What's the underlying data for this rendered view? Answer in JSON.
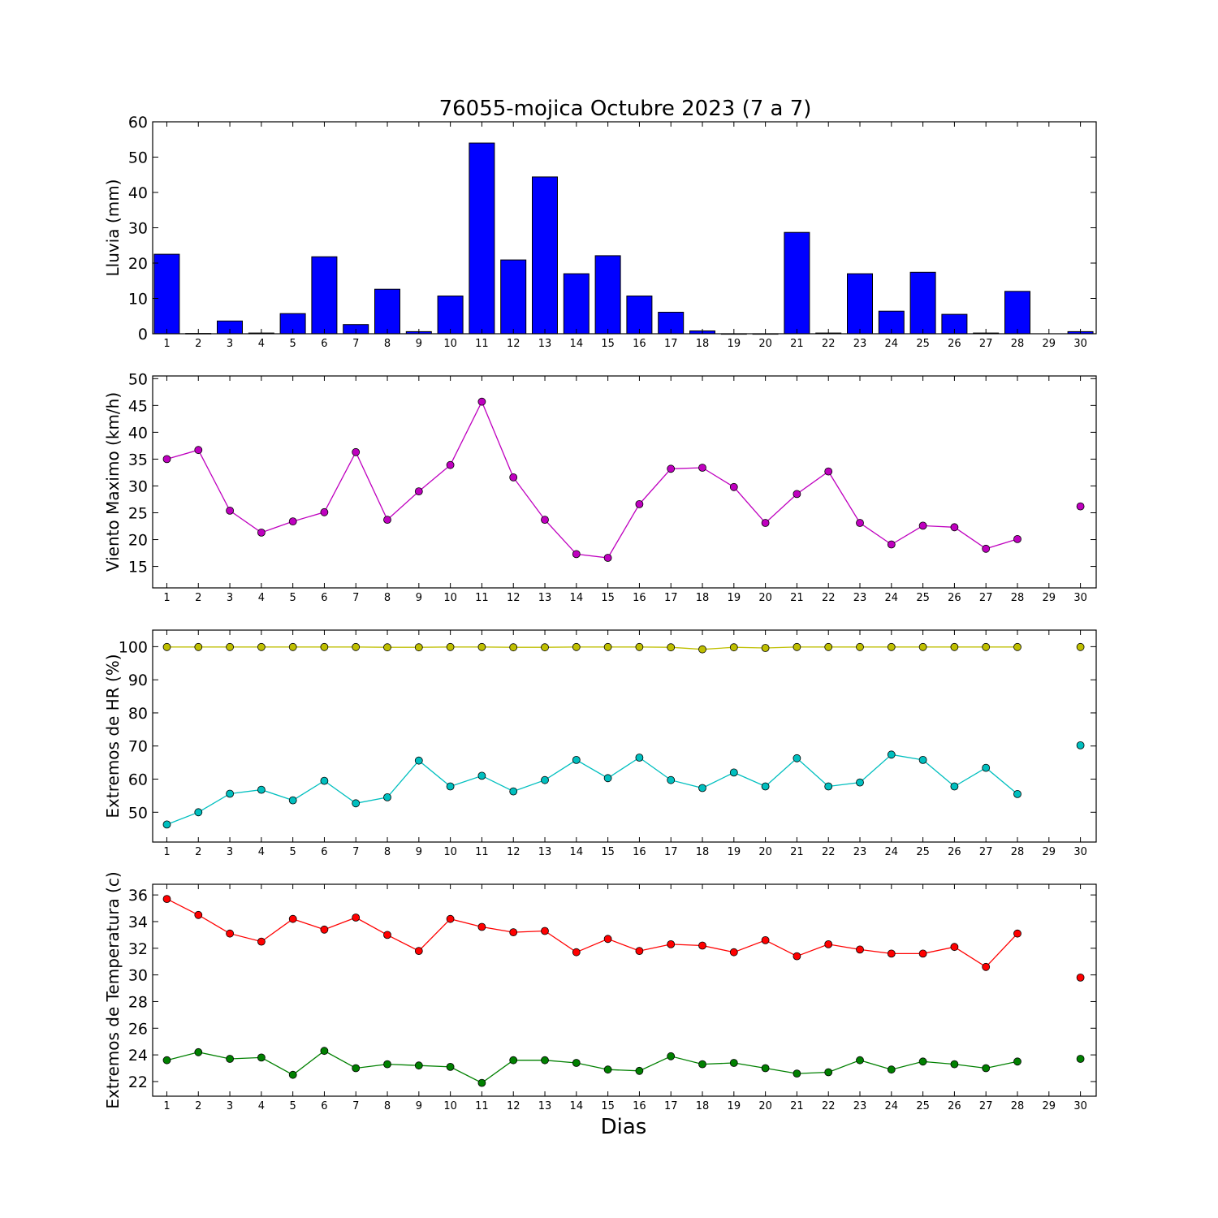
{
  "figure": {
    "title": "76055-mojica Octubre 2023  (7 a 7)",
    "xlabel": "Dias"
  },
  "chart_data": [
    {
      "type": "bar",
      "ylabel": "Lluvia (mm)",
      "ylim": [
        0,
        60
      ],
      "yticks": [
        0,
        10,
        20,
        30,
        40,
        50,
        60
      ],
      "xticks": [
        1,
        2,
        3,
        4,
        5,
        6,
        7,
        8,
        9,
        10,
        11,
        12,
        13,
        14,
        15,
        16,
        17,
        18,
        19,
        20,
        21,
        22,
        23,
        24,
        25,
        26,
        27,
        28,
        29,
        30
      ],
      "color": "#0000ff",
      "series": [
        {
          "x": [
            1,
            2,
            3,
            4,
            5,
            6,
            7,
            8,
            9,
            10,
            11,
            12,
            13,
            14,
            15,
            16,
            17,
            18,
            19,
            20,
            21,
            22,
            23,
            24,
            25,
            26,
            27,
            28,
            29,
            30
          ],
          "values": [
            22.5,
            0.1,
            3.6,
            0.2,
            5.7,
            21.8,
            2.6,
            12.6,
            0.6,
            10.7,
            54.0,
            20.9,
            44.4,
            17.0,
            22.1,
            10.7,
            6.1,
            0.8,
            0.0,
            0.0,
            28.7,
            0.2,
            17.0,
            6.4,
            17.4,
            5.5,
            0.2,
            12.0,
            null,
            0.6
          ]
        }
      ]
    },
    {
      "type": "line",
      "ylabel": "Viento Maximo (km/h)",
      "ylim": [
        11,
        50.5
      ],
      "yticks": [
        15,
        20,
        25,
        30,
        35,
        40,
        45,
        50
      ],
      "xticks": [
        1,
        2,
        3,
        4,
        5,
        6,
        7,
        8,
        9,
        10,
        11,
        12,
        13,
        14,
        15,
        16,
        17,
        18,
        19,
        20,
        21,
        22,
        23,
        24,
        25,
        26,
        27,
        28,
        29,
        30
      ],
      "series": [
        {
          "color": "#bf00bf",
          "x": [
            1,
            2,
            3,
            4,
            5,
            6,
            7,
            8,
            9,
            10,
            11,
            12,
            13,
            14,
            15,
            16,
            17,
            18,
            19,
            20,
            21,
            22,
            23,
            24,
            25,
            26,
            27,
            28,
            29,
            30
          ],
          "values": [
            35.0,
            36.7,
            25.4,
            21.3,
            23.4,
            25.1,
            36.3,
            23.7,
            29.0,
            33.9,
            45.7,
            31.6,
            23.7,
            17.3,
            16.6,
            26.6,
            33.2,
            33.4,
            29.8,
            23.1,
            28.5,
            32.7,
            23.1,
            19.1,
            22.6,
            22.3,
            18.3,
            20.1,
            null,
            26.2
          ]
        }
      ]
    },
    {
      "type": "line",
      "ylabel": "Extremos de HR (%)",
      "ylim": [
        41,
        105
      ],
      "yticks": [
        50,
        60,
        70,
        80,
        90,
        100
      ],
      "xticks": [
        1,
        2,
        3,
        4,
        5,
        6,
        7,
        8,
        9,
        10,
        11,
        12,
        13,
        14,
        15,
        16,
        17,
        18,
        19,
        20,
        21,
        22,
        23,
        24,
        25,
        26,
        27,
        28,
        29,
        30
      ],
      "series": [
        {
          "color": "#bfbf00",
          "x": [
            1,
            2,
            3,
            4,
            5,
            6,
            7,
            8,
            9,
            10,
            11,
            12,
            13,
            14,
            15,
            16,
            17,
            18,
            19,
            20,
            21,
            22,
            23,
            24,
            25,
            26,
            27,
            28,
            29,
            30
          ],
          "values": [
            99.9,
            99.9,
            99.9,
            99.9,
            99.9,
            99.9,
            99.9,
            99.8,
            99.8,
            99.9,
            99.9,
            99.8,
            99.8,
            99.9,
            99.9,
            99.9,
            99.8,
            99.2,
            99.8,
            99.6,
            99.9,
            99.9,
            99.9,
            99.9,
            99.9,
            99.9,
            99.9,
            99.9,
            null,
            99.9
          ]
        },
        {
          "color": "#00bfbf",
          "x": [
            1,
            2,
            3,
            4,
            5,
            6,
            7,
            8,
            9,
            10,
            11,
            12,
            13,
            14,
            15,
            16,
            17,
            18,
            19,
            20,
            21,
            22,
            23,
            24,
            25,
            26,
            27,
            28,
            29,
            30
          ],
          "values": [
            46.3,
            50.0,
            55.6,
            56.8,
            53.6,
            59.5,
            52.7,
            54.5,
            65.6,
            57.8,
            61.0,
            56.3,
            59.7,
            65.8,
            60.3,
            66.5,
            59.7,
            57.3,
            62.0,
            57.8,
            66.3,
            57.8,
            59.0,
            67.4,
            65.8,
            57.8,
            63.4,
            55.5,
            null,
            70.2
          ]
        }
      ]
    },
    {
      "type": "line",
      "ylabel": "Extremos de Temperatura (c)",
      "ylim": [
        20.9,
        36.8
      ],
      "yticks": [
        22,
        24,
        26,
        28,
        30,
        32,
        34,
        36
      ],
      "xticks": [
        1,
        2,
        3,
        4,
        5,
        6,
        7,
        8,
        9,
        10,
        11,
        12,
        13,
        14,
        15,
        16,
        17,
        18,
        19,
        20,
        21,
        22,
        23,
        24,
        25,
        26,
        27,
        28,
        29,
        30
      ],
      "series": [
        {
          "color": "#ff0000",
          "x": [
            1,
            2,
            3,
            4,
            5,
            6,
            7,
            8,
            9,
            10,
            11,
            12,
            13,
            14,
            15,
            16,
            17,
            18,
            19,
            20,
            21,
            22,
            23,
            24,
            25,
            26,
            27,
            28,
            29,
            30
          ],
          "values": [
            35.7,
            34.5,
            33.1,
            32.5,
            34.2,
            33.4,
            34.3,
            33.0,
            31.8,
            34.2,
            33.6,
            33.2,
            33.3,
            31.7,
            32.7,
            31.8,
            32.3,
            32.2,
            31.7,
            32.6,
            31.4,
            32.3,
            31.9,
            31.6,
            31.6,
            32.1,
            30.6,
            33.1,
            null,
            29.8
          ]
        },
        {
          "color": "#008000",
          "x": [
            1,
            2,
            3,
            4,
            5,
            6,
            7,
            8,
            9,
            10,
            11,
            12,
            13,
            14,
            15,
            16,
            17,
            18,
            19,
            20,
            21,
            22,
            23,
            24,
            25,
            26,
            27,
            28,
            29,
            30
          ],
          "values": [
            23.6,
            24.2,
            23.7,
            23.8,
            22.5,
            24.3,
            23.0,
            23.3,
            23.2,
            23.1,
            21.9,
            23.6,
            23.6,
            23.4,
            22.9,
            22.8,
            23.9,
            23.3,
            23.4,
            23.0,
            22.6,
            22.7,
            23.6,
            22.9,
            23.5,
            23.3,
            23.0,
            23.5,
            null,
            23.7
          ]
        }
      ]
    }
  ]
}
